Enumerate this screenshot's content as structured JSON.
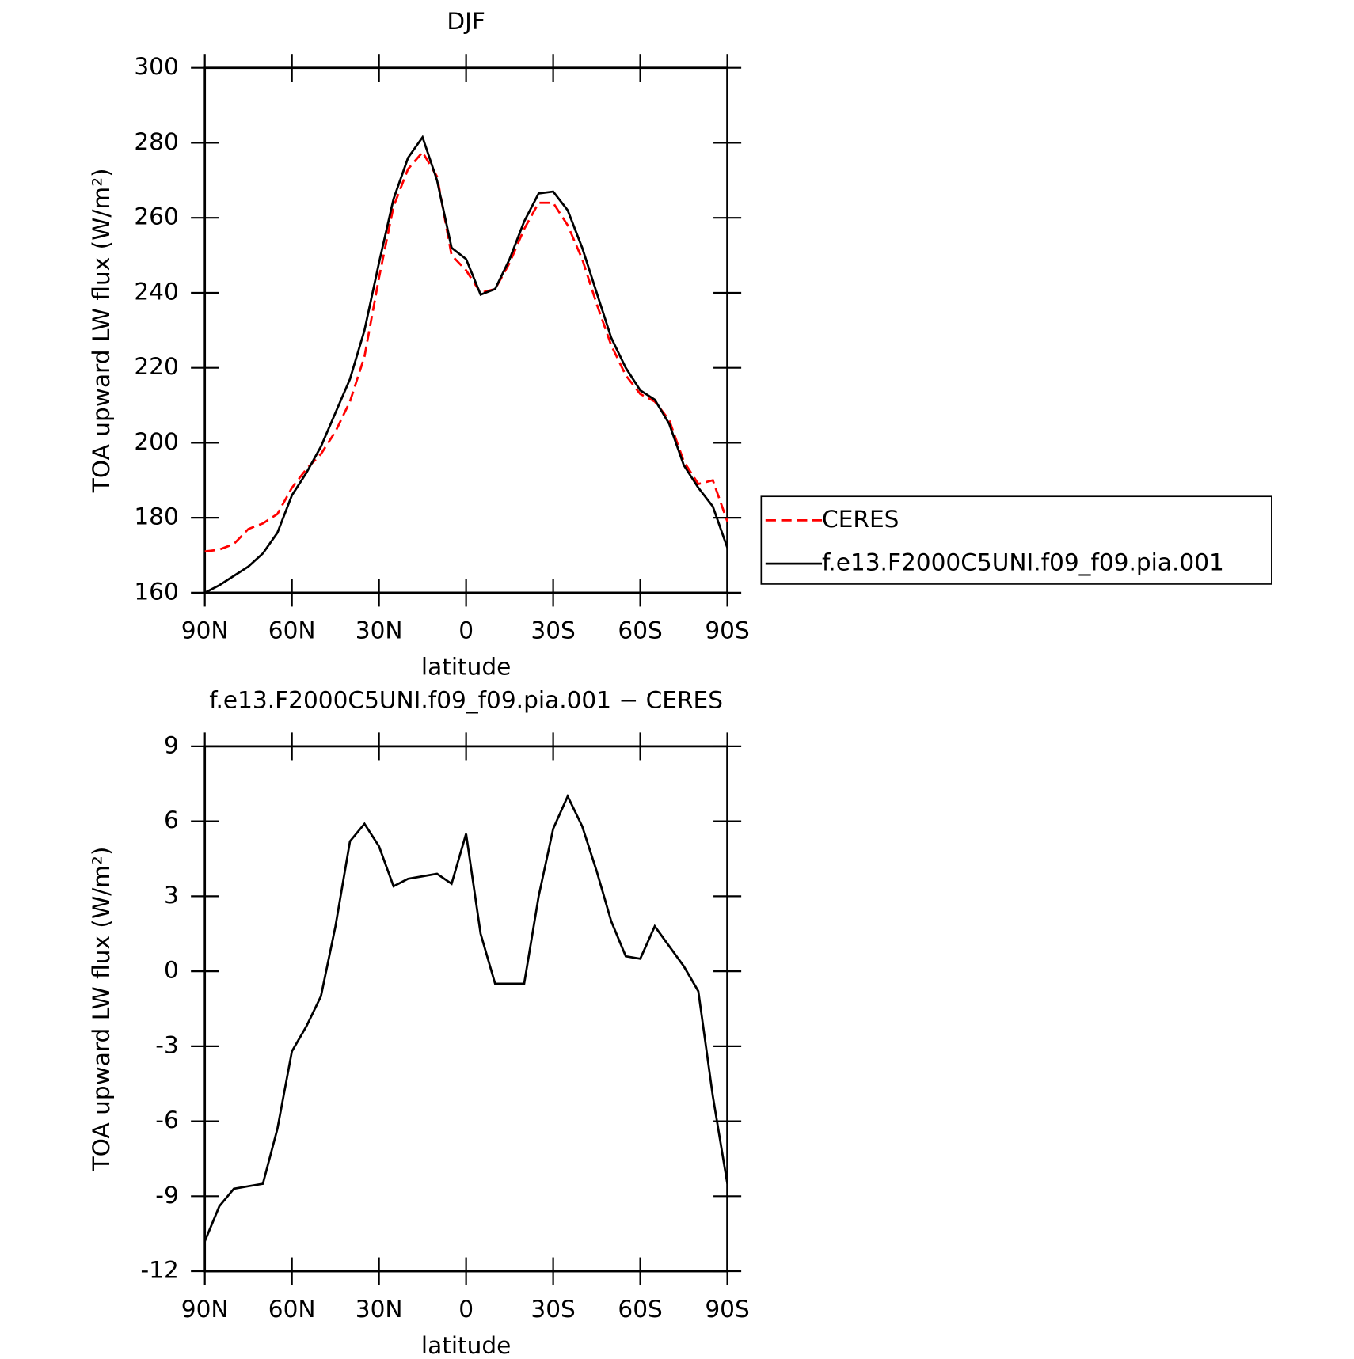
{
  "chart_data": [
    {
      "type": "line",
      "title": "DJF",
      "xlabel": "latitude",
      "ylabel": "TOA upward LW flux (W/m²)",
      "x": [
        90,
        85,
        80,
        75,
        70,
        65,
        60,
        55,
        50,
        45,
        40,
        35,
        30,
        25,
        20,
        15,
        10,
        5,
        0,
        -5,
        -10,
        -15,
        -20,
        -25,
        -30,
        -35,
        -40,
        -45,
        -50,
        -55,
        -60,
        -65,
        -70,
        -75,
        -80,
        -85,
        -90
      ],
      "series": [
        {
          "name": "CERES",
          "color": "#ff0000",
          "dash": true,
          "values": [
            171,
            171.5,
            173,
            177,
            178.5,
            181,
            188,
            193,
            197,
            203,
            211,
            223,
            244,
            263,
            273,
            277.5,
            271,
            250,
            246,
            240,
            241,
            248,
            257,
            264,
            264,
            258,
            249,
            237,
            226,
            218,
            213,
            211,
            206,
            195,
            189,
            190,
            179
          ]
        },
        {
          "name": "f.e13.F2000C5UNI.f09_f09.pia.001",
          "color": "#000000",
          "dash": false,
          "values": [
            160,
            162,
            164.5,
            167,
            170.5,
            176,
            186,
            192,
            199,
            208,
            217,
            230,
            248,
            265,
            276,
            281.5,
            270,
            252,
            249,
            239.5,
            241,
            249,
            259,
            266.5,
            267,
            262,
            252,
            240,
            228,
            220,
            214,
            211.5,
            205,
            194,
            188,
            183,
            172
          ]
        }
      ],
      "xlim": [
        90,
        -90
      ],
      "xticks": [
        {
          "value": 90,
          "label": "90N"
        },
        {
          "value": 60,
          "label": "60N"
        },
        {
          "value": 30,
          "label": "30N"
        },
        0,
        {
          "value": -30,
          "label": "30S"
        },
        {
          "value": -60,
          "label": "60S"
        },
        {
          "value": -90,
          "label": "90S"
        }
      ],
      "ylim": [
        160,
        300
      ],
      "yticks": [
        160,
        180,
        200,
        220,
        240,
        260,
        280,
        300
      ],
      "legend": "right"
    },
    {
      "type": "line",
      "title": "f.e13.F2000C5UNI.f09_f09.pia.001 − CERES",
      "xlabel": "latitude",
      "ylabel": "TOA upward LW flux (W/m²)",
      "x": [
        90,
        85,
        80,
        75,
        70,
        65,
        60,
        55,
        50,
        45,
        40,
        35,
        30,
        25,
        20,
        15,
        10,
        5,
        0,
        -5,
        -10,
        -15,
        -20,
        -25,
        -30,
        -35,
        -40,
        -45,
        -50,
        -55,
        -60,
        -65,
        -70,
        -75,
        -80,
        -85,
        -90
      ],
      "series": [
        {
          "color": "#000000",
          "dash": false,
          "values": [
            -10.8,
            -9.4,
            -8.7,
            -8.6,
            -8.5,
            -6.3,
            -3.2,
            -2.2,
            -1.0,
            1.8,
            5.2,
            5.9,
            5.0,
            3.4,
            3.7,
            3.8,
            3.9,
            3.5,
            5.5,
            1.5,
            -0.5,
            -0.5,
            -0.5,
            3.0,
            5.7,
            7.0,
            5.8,
            4.0,
            2.0,
            0.6,
            0.5,
            1.8,
            1.0,
            0.2,
            -0.8,
            -5.0,
            -8.5
          ]
        }
      ],
      "xlim": [
        90,
        -90
      ],
      "xticks": [
        {
          "value": 90,
          "label": "90N"
        },
        {
          "value": 60,
          "label": "60N"
        },
        {
          "value": 30,
          "label": "30N"
        },
        0,
        {
          "value": -30,
          "label": "30S"
        },
        {
          "value": -60,
          "label": "60S"
        },
        {
          "value": -90,
          "label": "90S"
        }
      ],
      "ylim": [
        -12,
        9
      ],
      "yticks": [
        -12,
        -9,
        -6,
        -3,
        0,
        3,
        6,
        9
      ]
    }
  ]
}
